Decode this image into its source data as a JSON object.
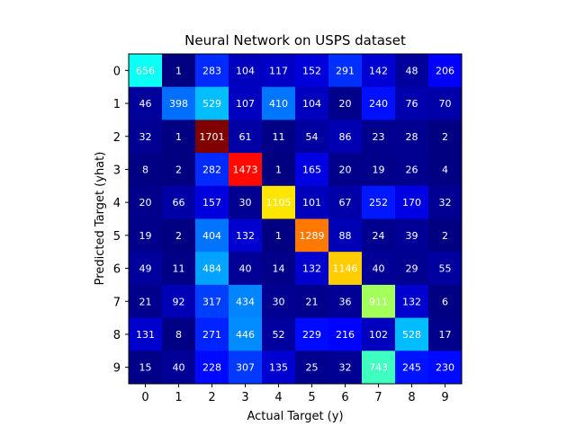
{
  "chart_data": {
    "type": "heatmap",
    "title": "Neural Network on USPS dataset",
    "xlabel": "Actual Target (y)",
    "ylabel": "Predicted Target (yhat)",
    "x_tick_labels": [
      "0",
      "1",
      "2",
      "3",
      "4",
      "5",
      "6",
      "7",
      "8",
      "9"
    ],
    "y_tick_labels": [
      "0",
      "1",
      "2",
      "3",
      "4",
      "5",
      "6",
      "7",
      "8",
      "9"
    ],
    "colormap": "jet",
    "value_range": [
      0,
      1701
    ],
    "matrix": [
      [
        656,
        1,
        283,
        104,
        117,
        152,
        291,
        142,
        48,
        206
      ],
      [
        46,
        398,
        529,
        107,
        410,
        104,
        20,
        240,
        76,
        70
      ],
      [
        32,
        1,
        1701,
        61,
        11,
        54,
        86,
        23,
        28,
        2
      ],
      [
        8,
        2,
        282,
        1473,
        1,
        165,
        20,
        19,
        26,
        4
      ],
      [
        20,
        66,
        157,
        30,
        1105,
        101,
        67,
        252,
        170,
        32
      ],
      [
        19,
        2,
        404,
        132,
        1,
        1289,
        88,
        24,
        39,
        2
      ],
      [
        49,
        11,
        484,
        40,
        14,
        132,
        1146,
        40,
        29,
        55
      ],
      [
        21,
        92,
        317,
        434,
        30,
        21,
        36,
        911,
        132,
        6
      ],
      [
        131,
        8,
        271,
        446,
        52,
        229,
        216,
        102,
        528,
        17
      ],
      [
        15,
        40,
        228,
        307,
        135,
        25,
        32,
        743,
        245,
        230
      ]
    ]
  }
}
